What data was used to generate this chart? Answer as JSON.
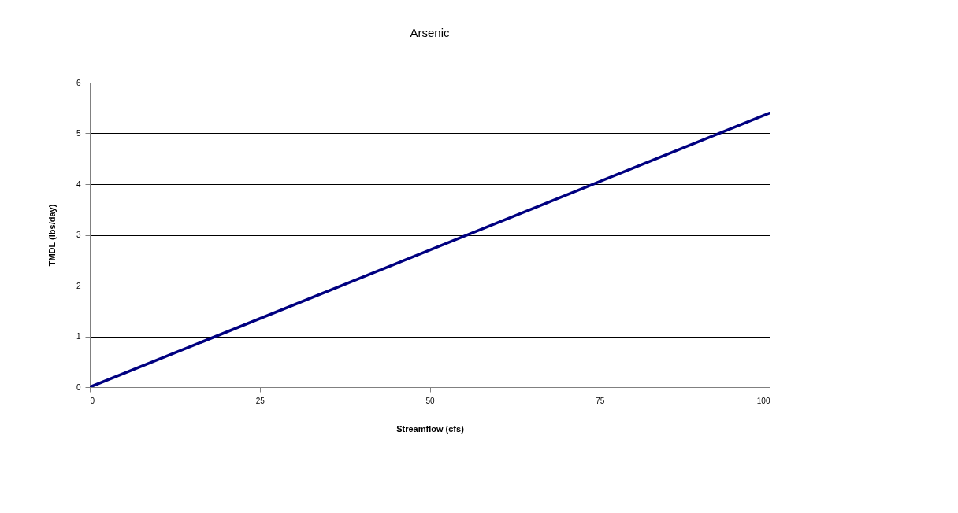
{
  "chart_data": {
    "type": "line",
    "title": "Arsenic",
    "xlabel": "Streamflow (cfs)",
    "ylabel": "TMDL (lbs/day)",
    "x": [
      0,
      100
    ],
    "series": [
      {
        "color": "#000080",
        "values": [
          0,
          5.4
        ]
      }
    ],
    "xlim": [
      0,
      100
    ],
    "xticks": [
      0,
      25,
      50,
      75,
      100
    ],
    "ylim": [
      0,
      6
    ],
    "yticks": [
      0,
      1,
      2,
      3,
      4,
      5,
      6
    ],
    "grid": "y",
    "marker": "none",
    "line_style": "solid"
  }
}
